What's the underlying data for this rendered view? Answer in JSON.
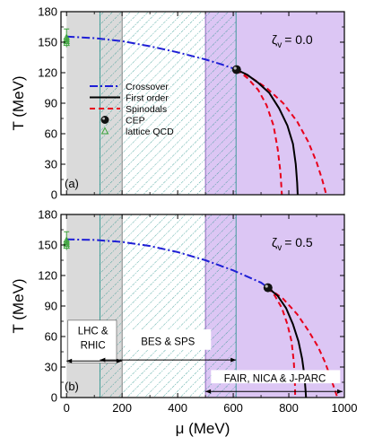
{
  "chart_data": {
    "type": "line",
    "xlabel": "μ (MeV)",
    "ylabel": "T (MeV)",
    "xlim": [
      -20,
      1000
    ],
    "ylim": [
      0,
      180
    ],
    "x_ticks": [
      0,
      200,
      400,
      600,
      800,
      1000
    ],
    "y_ticks": [
      0,
      30,
      60,
      90,
      120,
      150,
      180
    ],
    "grid": false,
    "legend_position": "left-middle of top panel",
    "legend": [
      {
        "key": "crossover",
        "label": "Crossover",
        "color": "#1f1fd6",
        "style": "dash-dot"
      },
      {
        "key": "first_order",
        "label": "First order",
        "color": "#000000",
        "style": "solid"
      },
      {
        "key": "spinodals",
        "label": "Spinodals",
        "color": "#e8001c",
        "style": "dashed"
      },
      {
        "key": "cep",
        "label": "CEP",
        "color": "#000000",
        "style": "ball"
      },
      {
        "key": "lattice",
        "label": "lattice QCD",
        "color": "#3aa23a",
        "style": "open-triangle"
      }
    ],
    "regions": {
      "lhc_rhic": [
        0,
        200
      ],
      "bes_sps": [
        120,
        610
      ],
      "fair_nica_jparc": [
        500,
        1000
      ]
    },
    "region_colors": {
      "lhc_rhic": "#dadada",
      "bes_sps": "#1d8f86",
      "fair_nica_jparc": "#dcc6f4"
    },
    "panels": [
      {
        "tag": "(a)",
        "zeta_label": "ζ",
        "zeta_sub": "v",
        "zeta_value": "= 0.0",
        "show_legend": true,
        "show_region_labels": false,
        "crossover": {
          "x": [
            0,
            100,
            200,
            300,
            400,
            500,
            560,
            612
          ],
          "y": [
            155.5,
            154,
            151,
            146,
            140,
            133,
            128,
            123
          ]
        },
        "first_order": {
          "x": [
            612,
            650,
            690,
            730,
            765,
            795,
            815,
            825,
            830,
            832
          ],
          "y": [
            123,
            118,
            110,
            100,
            85,
            68,
            50,
            30,
            12,
            0
          ]
        },
        "spinodal_outer": {
          "x": [
            612,
            660,
            720,
            780,
            830,
            870,
            900,
            920,
            935
          ],
          "y": [
            123,
            116,
            105,
            90,
            72,
            52,
            32,
            15,
            0
          ]
        },
        "spinodal_inner": {
          "x": [
            612,
            650,
            690,
            720,
            745,
            760,
            770,
            775
          ],
          "y": [
            123,
            115,
            103,
            88,
            68,
            45,
            22,
            0
          ]
        },
        "cep": {
          "x": 612,
          "y": 123
        },
        "lattice": {
          "x": [
            0,
            0,
            0,
            0
          ],
          "y": [
            155,
            153,
            151,
            149
          ],
          "err_low": 145,
          "err_high": 163
        }
      },
      {
        "tag": "(b)",
        "zeta_label": "ζ",
        "zeta_sub": "v",
        "zeta_value": "= 0.5",
        "show_legend": false,
        "show_region_labels": true,
        "crossover": {
          "x": [
            0,
            100,
            200,
            300,
            400,
            500,
            600,
            700,
            725
          ],
          "y": [
            155.5,
            155,
            153,
            149,
            143,
            135,
            125,
            113,
            108
          ]
        },
        "first_order": {
          "x": [
            725,
            760,
            790,
            815,
            835,
            848,
            856,
            860,
            862
          ],
          "y": [
            108,
            100,
            88,
            72,
            55,
            38,
            22,
            8,
            0
          ]
        },
        "spinodal_outer": {
          "x": [
            725,
            780,
            830,
            870,
            905,
            930,
            950,
            965,
            975
          ],
          "y": [
            108,
            97,
            82,
            66,
            50,
            35,
            20,
            8,
            0
          ]
        },
        "spinodal_inner": {
          "x": [
            725,
            750,
            775,
            795,
            810,
            818,
            822,
            823
          ],
          "y": [
            108,
            100,
            88,
            72,
            55,
            35,
            15,
            0
          ]
        },
        "cep": {
          "x": 725,
          "y": 108
        },
        "lattice": {
          "x": [
            0,
            0,
            0,
            0
          ],
          "y": [
            155,
            153,
            151,
            149
          ],
          "err_low": 145,
          "err_high": 163
        }
      }
    ],
    "region_labels": {
      "lhc_rhic": [
        "LHC &",
        "RHIC"
      ],
      "bes_sps": "BES & SPS",
      "fair_nica_jparc": "FAIR, NICA & J-PARC"
    }
  }
}
